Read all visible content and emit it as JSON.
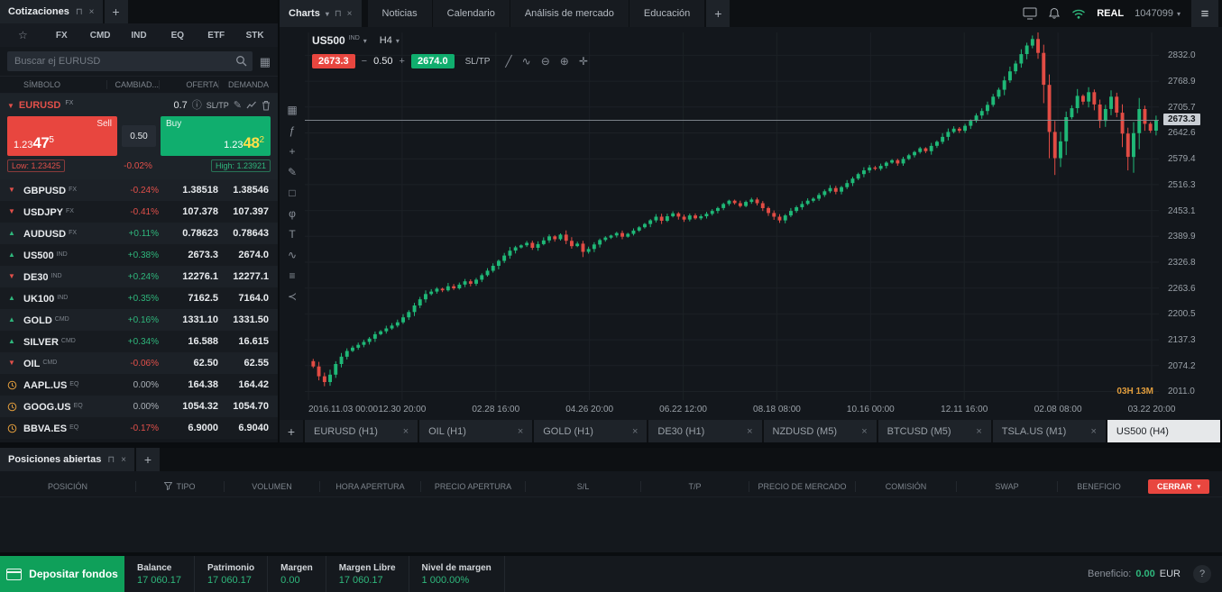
{
  "quotes_panel": {
    "title": "Cotizaciones",
    "add_tab_label": "+",
    "category_tabs": [
      "FX",
      "CMD",
      "IND",
      "EQ",
      "ETF",
      "STK"
    ],
    "search_placeholder": "Buscar ej EURUSD",
    "columns": [
      "SÍMBOLO",
      "CAMBIAD...",
      "OFERTA",
      "DEMANDA"
    ],
    "featured": {
      "symbol": "EURUSD",
      "category": "FX",
      "spread": "0.7",
      "sltp_label": "SL/TP",
      "sell_label": "Sell",
      "sell_price": {
        "base": "1.23",
        "big": "47",
        "sup": "5"
      },
      "volume": "0.50",
      "buy_label": "Buy",
      "buy_price": {
        "base": "1.23",
        "big": "48",
        "sup": "2"
      },
      "low_label": "Low: 1.23425",
      "change": "-0.02%",
      "high_label": "High: 1.23921"
    },
    "rows": [
      {
        "symbol": "GBPUSD",
        "cat": "FX",
        "dir": "down",
        "change": "-0.24%",
        "bid": "1.38518",
        "ask": "1.38546"
      },
      {
        "symbol": "USDJPY",
        "cat": "FX",
        "dir": "down",
        "change": "-0.41%",
        "bid": "107.378",
        "ask": "107.397"
      },
      {
        "symbol": "AUDUSD",
        "cat": "FX",
        "dir": "up",
        "change": "+0.11%",
        "bid": "0.78623",
        "ask": "0.78643"
      },
      {
        "symbol": "US500",
        "cat": "IND",
        "dir": "up",
        "change": "+0.38%",
        "bid": "2673.3",
        "ask": "2674.0"
      },
      {
        "symbol": "DE30",
        "cat": "IND",
        "dir": "down",
        "change": "+0.24%",
        "bid": "12276.1",
        "ask": "12277.1"
      },
      {
        "symbol": "UK100",
        "cat": "IND",
        "dir": "up",
        "change": "+0.35%",
        "bid": "7162.5",
        "ask": "7164.0"
      },
      {
        "symbol": "GOLD",
        "cat": "CMD",
        "dir": "up",
        "change": "+0.16%",
        "bid": "1331.10",
        "ask": "1331.50"
      },
      {
        "symbol": "SILVER",
        "cat": "CMD",
        "dir": "up",
        "change": "+0.34%",
        "bid": "16.588",
        "ask": "16.615"
      },
      {
        "symbol": "OIL",
        "cat": "CMD",
        "dir": "down",
        "change": "-0.06%",
        "bid": "62.50",
        "ask": "62.55"
      },
      {
        "symbol": "AAPL.US",
        "cat": "EQ",
        "dir": "pause",
        "change": "0.00%",
        "bid": "164.38",
        "ask": "164.42"
      },
      {
        "symbol": "GOOG.US",
        "cat": "EQ",
        "dir": "pause",
        "change": "0.00%",
        "bid": "1054.32",
        "ask": "1054.70"
      },
      {
        "symbol": "BBVA.ES",
        "cat": "EQ",
        "dir": "pause",
        "change": "-0.17%",
        "bid": "6.9000",
        "ask": "6.9040"
      }
    ]
  },
  "top_bar": {
    "charts_tab_label": "Charts",
    "nav_tabs": [
      "Noticias",
      "Calendario",
      "Análisis de mercado",
      "Educación"
    ],
    "add_tab_label": "+",
    "account_type": "REAL",
    "account_id": "1047099"
  },
  "chart": {
    "symbol": "US500",
    "symbol_category": "IND",
    "timeframe": "H4",
    "sell_price": "2673.3",
    "volume": "0.50",
    "buy_price": "2674.0",
    "sltp_label": "SL/TP",
    "countdown": "03H 13M",
    "current_price": "2673.3",
    "top_tool_icons": [
      {
        "name": "trendline-icon",
        "glyph": "╱"
      },
      {
        "name": "indicator-wave-icon",
        "glyph": "∿"
      },
      {
        "name": "zoom-out-icon",
        "glyph": "⊖"
      },
      {
        "name": "zoom-in-icon",
        "glyph": "⊕"
      },
      {
        "name": "move-crosshair-icon",
        "glyph": "✛"
      }
    ],
    "side_tool_icons": [
      {
        "name": "chart-style-icon",
        "glyph": "▦"
      },
      {
        "name": "function-icon",
        "glyph": "ƒ"
      },
      {
        "name": "add-instrument-icon",
        "glyph": "+"
      },
      {
        "name": "pencil-icon",
        "glyph": "✎"
      },
      {
        "name": "shapes-icon",
        "glyph": "□"
      },
      {
        "name": "fibonacci-icon",
        "glyph": "φ"
      },
      {
        "name": "text-tool-icon",
        "glyph": "T"
      },
      {
        "name": "indicators-icon",
        "glyph": "∿"
      },
      {
        "name": "layers-icon",
        "glyph": "≡"
      },
      {
        "name": "share-icon",
        "glyph": "≺"
      }
    ],
    "price_ticks": [
      "2832.0",
      "2768.9",
      "2705.7",
      "2642.6",
      "2579.4",
      "2516.3",
      "2453.1",
      "2389.9",
      "2326.8",
      "2263.6",
      "2200.5",
      "2137.3",
      "2074.2",
      "2011.0"
    ],
    "time_ticks": [
      "2016.11.03 00:00",
      "12.30 20:00",
      "02.28 16:00",
      "04.26 20:00",
      "06.22 12:00",
      "08.18 08:00",
      "10.16 00:00",
      "12.11 16:00",
      "02.08 08:00",
      "03.22 20:00"
    ],
    "bottom_tabs": [
      {
        "label": "EURUSD (H1)",
        "active": false
      },
      {
        "label": "OIL (H1)",
        "active": false
      },
      {
        "label": "GOLD (H1)",
        "active": false
      },
      {
        "label": "DE30 (H1)",
        "active": false
      },
      {
        "label": "NZDUSD (M5)",
        "active": false
      },
      {
        "label": "BTCUSD (M5)",
        "active": false
      },
      {
        "label": "TSLA.US (M1)",
        "active": false
      },
      {
        "label": "US500 (H4)",
        "active": true
      }
    ]
  },
  "chart_data": {
    "type": "candlestick",
    "title": "US500 H4",
    "xlabel_ticks": [
      "2016.11.03 00:00",
      "12.30 20:00",
      "02.28 16:00",
      "04.26 20:00",
      "06.22 12:00",
      "08.18 08:00",
      "10.16 00:00",
      "12.11 16:00",
      "02.08 08:00",
      "03.22 20:00"
    ],
    "ylim": [
      1990,
      2888
    ],
    "current_price": 2673.3,
    "closes": [
      2085,
      2072,
      2048,
      2034,
      2052,
      2078,
      2096,
      2110,
      2118,
      2125,
      2132,
      2140,
      2151,
      2158,
      2165,
      2172,
      2180,
      2192,
      2205,
      2221,
      2236,
      2249,
      2255,
      2262,
      2258,
      2268,
      2263,
      2272,
      2280,
      2274,
      2284,
      2295,
      2306,
      2318,
      2330,
      2343,
      2355,
      2363,
      2368,
      2374,
      2362,
      2371,
      2380,
      2390,
      2383,
      2394,
      2379,
      2366,
      2372,
      2352,
      2359,
      2370,
      2381,
      2387,
      2392,
      2398,
      2389,
      2396,
      2404,
      2412,
      2420,
      2429,
      2438,
      2428,
      2439,
      2446,
      2438,
      2431,
      2441,
      2434,
      2439,
      2445,
      2452,
      2459,
      2469,
      2477,
      2471,
      2464,
      2474,
      2480,
      2471,
      2459,
      2447,
      2438,
      2429,
      2441,
      2452,
      2461,
      2469,
      2477,
      2482,
      2491,
      2500,
      2508,
      2499,
      2510,
      2520,
      2531,
      2542,
      2551,
      2558,
      2555,
      2562,
      2570,
      2576,
      2568,
      2579,
      2588,
      2596,
      2605,
      2598,
      2611,
      2621,
      2633,
      2645,
      2653,
      2648,
      2660,
      2672,
      2685,
      2696,
      2711,
      2731,
      2748,
      2771,
      2793,
      2812,
      2835,
      2856,
      2872,
      2838,
      2760,
      2645,
      2581,
      2622,
      2681,
      2703,
      2733,
      2719,
      2742,
      2712,
      2672,
      2701,
      2731,
      2692,
      2641,
      2584,
      2642,
      2701,
      2665,
      2648,
      2673.3
    ]
  },
  "positions_panel": {
    "title": "Posiciones abiertas",
    "add_tab_label": "+",
    "columns": [
      "POSICIÓN",
      "TIPO",
      "VOLUMEN",
      "HORA APERTURA",
      "PRECIO APERTURA",
      "S/L",
      "T/P",
      "PRECIO DE MERCADO",
      "COMISIÓN",
      "SWAP",
      "BENEFICIO"
    ],
    "close_button_label": "CERRAR"
  },
  "status_bar": {
    "deposit_button_label": "Depositar fondos",
    "stats": [
      {
        "label": "Balance",
        "value": "17 060.17"
      },
      {
        "label": "Patrimonio",
        "value": "17 060.17"
      },
      {
        "label": "Margen",
        "value": "0.00"
      },
      {
        "label": "Margen Libre",
        "value": "17 060.17"
      },
      {
        "label": "Nivel de margen",
        "value": "1 000.00%"
      }
    ],
    "profit_label": "Beneficio:",
    "profit_value": "0.00",
    "profit_currency": "EUR"
  },
  "colors": {
    "sell_red": "#e8463f",
    "buy_green": "#10ae6e",
    "up_green": "#2fb77c",
    "down_red": "#e2504a",
    "pending_orange": "#e09c3c",
    "current_price_label_bg": "#c9ced4"
  }
}
